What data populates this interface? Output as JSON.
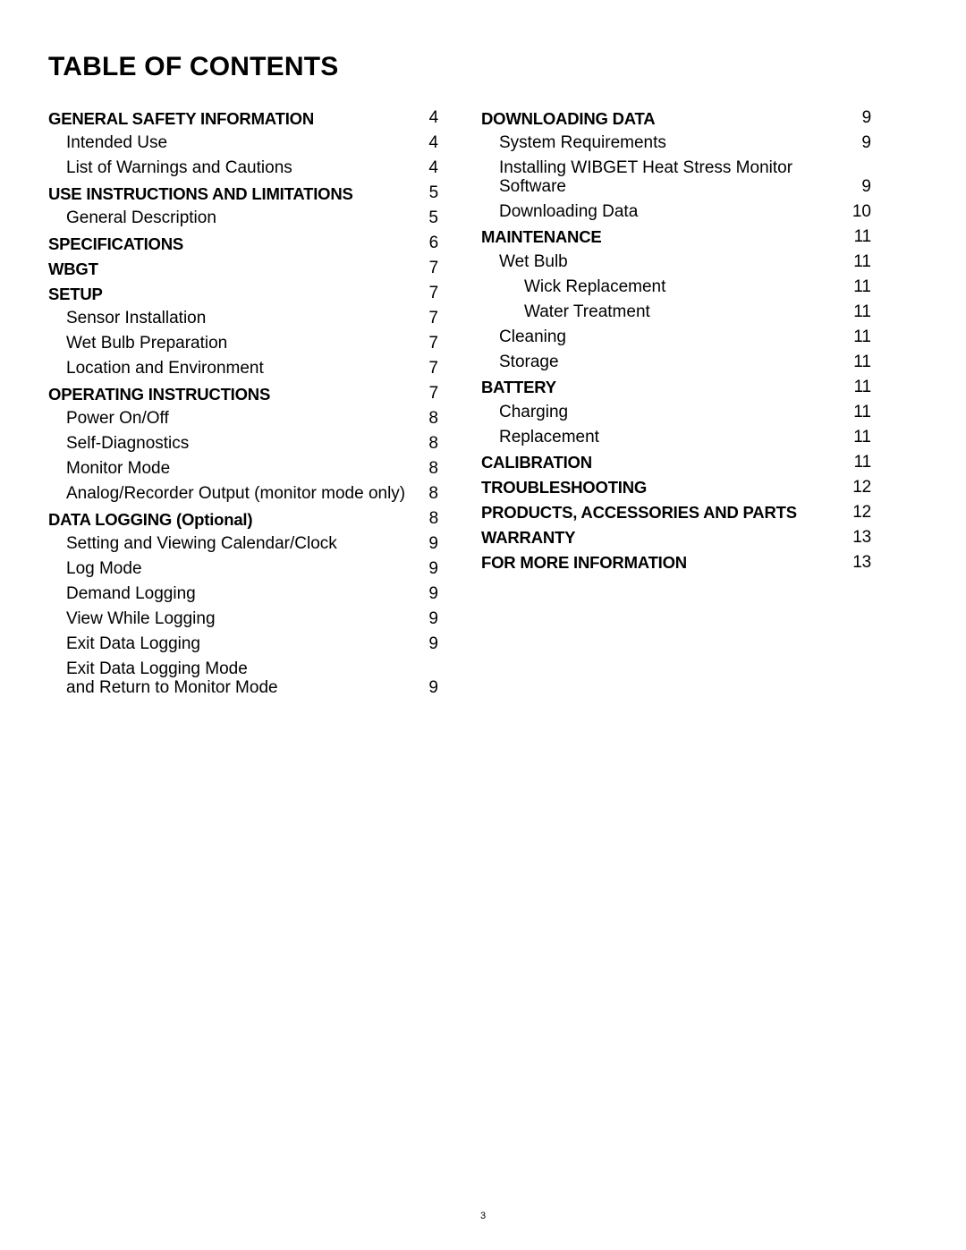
{
  "title": "TABLE OF CONTENTS",
  "page_number": "3",
  "columns": [
    [
      {
        "label": "GENERAL SAFETY INFORMATION",
        "page": "4",
        "level": 0
      },
      {
        "label": "Intended Use",
        "page": "4",
        "level": 1
      },
      {
        "label": "List of Warnings and Cautions",
        "page": "4",
        "level": 1
      },
      {
        "label": "USE INSTRUCTIONS AND LIMITATIONS",
        "page": "5",
        "level": 0
      },
      {
        "label": "General Description",
        "page": "5",
        "level": 1
      },
      {
        "label": "SPECIFICATIONS",
        "page": "6",
        "level": 0
      },
      {
        "label": "WBGT",
        "page": "7",
        "level": 0
      },
      {
        "label": "SETUP",
        "page": "7",
        "level": 0
      },
      {
        "label": "Sensor Installation",
        "page": "7",
        "level": 1
      },
      {
        "label": "Wet Bulb Preparation",
        "page": "7",
        "level": 1
      },
      {
        "label": "Location and Environment",
        "page": "7",
        "level": 1
      },
      {
        "label": "OPERATING INSTRUCTIONS",
        "page": "7",
        "level": 0
      },
      {
        "label": "Power On/Off",
        "page": "8",
        "level": 1
      },
      {
        "label": "Self-Diagnostics",
        "page": "8",
        "level": 1
      },
      {
        "label": "Monitor Mode",
        "page": "8",
        "level": 1
      },
      {
        "label": "Analog/Recorder Output (monitor mode only)",
        "page": "8",
        "level": 1
      },
      {
        "label": "DATA LOGGING (Optional)",
        "page": "8",
        "level": 0
      },
      {
        "label": "Setting and Viewing Calendar/Clock",
        "page": "9",
        "level": 1
      },
      {
        "label": "Log Mode",
        "page": "9",
        "level": 1
      },
      {
        "label": "Demand Logging",
        "page": "9",
        "level": 1
      },
      {
        "label": "View While Logging",
        "page": "9",
        "level": 1
      },
      {
        "label": "Exit Data Logging",
        "page": "9",
        "level": 1
      },
      {
        "label": "Exit Data Logging Mode\nand Return to Monitor Mode",
        "page": "9",
        "level": 1
      }
    ],
    [
      {
        "label": "DOWNLOADING DATA",
        "page": "9",
        "level": 0
      },
      {
        "label": "System Requirements",
        "page": "9",
        "level": 1
      },
      {
        "label": "Installing WIBGET Heat Stress Monitor Software",
        "page": "9",
        "level": 1
      },
      {
        "label": "Downloading Data",
        "page": "10",
        "level": 1
      },
      {
        "label": "MAINTENANCE",
        "page": "11",
        "level": 0
      },
      {
        "label": "Wet Bulb",
        "page": "11",
        "level": 1
      },
      {
        "label": "Wick Replacement",
        "page": "11",
        "level": 2
      },
      {
        "label": "Water Treatment",
        "page": "11",
        "level": 2
      },
      {
        "label": "Cleaning",
        "page": "11",
        "level": 1
      },
      {
        "label": "Storage",
        "page": "11",
        "level": 1
      },
      {
        "label": "BATTERY",
        "page": "11",
        "level": 0
      },
      {
        "label": "Charging",
        "page": "11",
        "level": 1
      },
      {
        "label": "Replacement",
        "page": "11",
        "level": 1
      },
      {
        "label": "CALIBRATION",
        "page": "11",
        "level": 0
      },
      {
        "label": "TROUBLESHOOTING",
        "page": "12",
        "level": 0
      },
      {
        "label": "PRODUCTS, ACCESSORIES AND PARTS",
        "page": "12",
        "level": 0
      },
      {
        "label": "WARRANTY",
        "page": "13",
        "level": 0
      },
      {
        "label": "FOR MORE INFORMATION",
        "page": "13",
        "level": 0
      }
    ]
  ]
}
